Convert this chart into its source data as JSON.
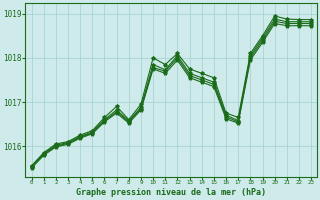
{
  "bg_color": "#ceeaea",
  "plot_bg_color": "#ceeaea",
  "grid_color": "#a8d4d4",
  "line_color": "#1a6b1a",
  "bottom_bar_color": "#2d6b2d",
  "xlabel": "Graphe pression niveau de la mer (hPa)",
  "ylim": [
    1015.3,
    1019.25
  ],
  "xlim": [
    -0.5,
    23.5
  ],
  "yticks": [
    1016,
    1017,
    1018,
    1019
  ],
  "xticks": [
    0,
    1,
    2,
    3,
    4,
    5,
    6,
    7,
    8,
    9,
    10,
    11,
    12,
    13,
    14,
    15,
    16,
    17,
    18,
    19,
    20,
    21,
    22,
    23
  ],
  "series": [
    [
      1015.55,
      1015.85,
      1016.05,
      1016.1,
      1016.25,
      1016.35,
      1016.65,
      1016.9,
      1016.6,
      1016.95,
      1018.0,
      1017.85,
      1018.1,
      1017.75,
      1017.65,
      1017.55,
      1016.75,
      1016.65,
      1018.1,
      1018.5,
      1018.95,
      1018.88,
      1018.87,
      1018.87
    ],
    [
      1015.55,
      1015.83,
      1016.02,
      1016.08,
      1016.22,
      1016.32,
      1016.6,
      1016.82,
      1016.57,
      1016.88,
      1017.85,
      1017.73,
      1018.05,
      1017.65,
      1017.55,
      1017.45,
      1016.7,
      1016.58,
      1018.05,
      1018.45,
      1018.88,
      1018.82,
      1018.82,
      1018.82
    ],
    [
      1015.53,
      1015.81,
      1016.0,
      1016.06,
      1016.2,
      1016.3,
      1016.57,
      1016.78,
      1016.55,
      1016.85,
      1017.78,
      1017.7,
      1018.0,
      1017.6,
      1017.5,
      1017.4,
      1016.66,
      1016.55,
      1018.0,
      1018.4,
      1018.83,
      1018.78,
      1018.78,
      1018.78
    ],
    [
      1015.5,
      1015.79,
      1015.98,
      1016.04,
      1016.18,
      1016.28,
      1016.55,
      1016.75,
      1016.52,
      1016.82,
      1017.75,
      1017.65,
      1017.95,
      1017.55,
      1017.45,
      1017.35,
      1016.62,
      1016.52,
      1017.95,
      1018.35,
      1018.78,
      1018.73,
      1018.73,
      1018.73
    ]
  ]
}
